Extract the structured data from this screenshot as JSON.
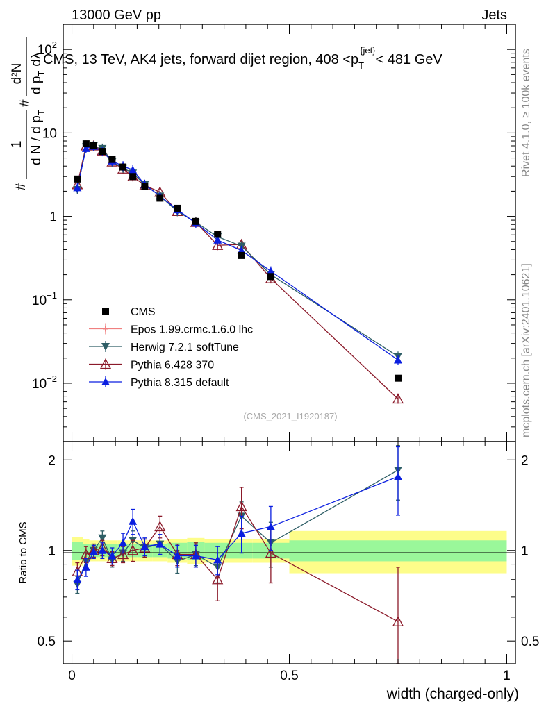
{
  "header": {
    "left": "13000 GeV pp",
    "right": "Jets",
    "rivet": "Rivet 4.1.0, ≥ 100k events",
    "mcplots": "mcplots.cern.ch [arXiv:2401.10621]"
  },
  "chart_data": [
    {
      "type": "line",
      "title": "CMS, 13 TeV, AK4 jets, forward dijet region, 408 <p_T^{jet}> < 481 GeV",
      "title_parts": {
        "main": "CMS, 13 TeV, AK4 jets, forward dijet region, 408 <p",
        "sub": "T",
        "sup": "{jet}",
        "tail": "< 481 GeV"
      },
      "ylabel_parts": {
        "frac": "1",
        "num": "#",
        "den": "d N / d p",
        "den_sub": "T",
        "mid": "#",
        "num2": "d²N",
        "den2": "d p",
        "den2_sub": "T",
        "den2_tail": "dλ"
      },
      "ylabel": "# 1 / d N / d p_T # d²N / d p_T dλ",
      "yscale": "log",
      "ylim": [
        0.002,
        200
      ],
      "xlim": [
        -0.02,
        1.02
      ],
      "yticks": [
        {
          "value": 100,
          "base": "10",
          "exp": "2"
        },
        {
          "value": 10,
          "label": "10"
        },
        {
          "value": 1,
          "label": "1"
        },
        {
          "value": 0.1,
          "base": "10",
          "exp": "−1"
        },
        {
          "value": 0.01,
          "base": "10",
          "exp": "−2"
        }
      ],
      "x": [
        0.0125,
        0.0325,
        0.05,
        0.07,
        0.0925,
        0.1175,
        0.14,
        0.1675,
        0.2025,
        0.2425,
        0.285,
        0.335,
        0.39,
        0.4575,
        0.75
      ],
      "series": [
        {
          "name": "CMS",
          "color": "#000000",
          "marker": "square",
          "values": [
            2.8,
            7.4,
            7.0,
            6.0,
            4.8,
            3.9,
            3.0,
            2.3,
            1.65,
            1.25,
            0.87,
            0.61,
            0.34,
            0.19,
            0.0115
          ]
        },
        {
          "name": "Epos 1.99.crmc.1.6.0 lhc",
          "color": "#f08080",
          "marker": "open-cross",
          "values": [
            null,
            null,
            null,
            null,
            null,
            null,
            null,
            null,
            null,
            null,
            null,
            null,
            null,
            null,
            null
          ]
        },
        {
          "name": "Herwig 7.2.1 softTune",
          "color": "#2e5e66",
          "marker": "triangle-down",
          "values": [
            2.1,
            6.8,
            7.0,
            6.5,
            4.5,
            3.8,
            3.3,
            2.4,
            1.75,
            1.15,
            0.85,
            0.57,
            0.44,
            0.2,
            0.021
          ]
        },
        {
          "name": "Pythia 6.428 370",
          "color": "#8b1a2a",
          "marker": "open-triangle",
          "values": [
            2.4,
            7.0,
            7.0,
            6.1,
            4.5,
            3.7,
            3.0,
            2.35,
            1.95,
            1.15,
            0.85,
            0.45,
            0.46,
            0.18,
            0.0065
          ]
        },
        {
          "name": "Pythia 8.315 default",
          "color": "#0a1ee0",
          "marker": "triangle",
          "values": [
            2.2,
            6.5,
            6.9,
            6.0,
            4.6,
            4.0,
            3.6,
            2.4,
            1.75,
            1.2,
            0.83,
            0.52,
            0.39,
            0.22,
            0.019
          ]
        }
      ],
      "watermark": "(CMS_2021_I1920187)"
    },
    {
      "type": "line",
      "ylabel": "Ratio to CMS",
      "xlabel": "width (charged-only)",
      "ylim": [
        0.42,
        2.3
      ],
      "yscale": "log",
      "yticks": [
        {
          "value": 0.5,
          "label": "0.5"
        },
        {
          "value": 1,
          "label": "1"
        },
        {
          "value": 2,
          "label": "2"
        }
      ],
      "xticks": [
        {
          "value": 0,
          "label": "0"
        },
        {
          "value": 0.5,
          "label": "0.5"
        },
        {
          "value": 1,
          "label": "1"
        }
      ],
      "band_edges": [
        0,
        0.025,
        0.04,
        0.06,
        0.08,
        0.105,
        0.13,
        0.15,
        0.185,
        0.22,
        0.265,
        0.305,
        0.365,
        0.415,
        0.5,
        1.0
      ],
      "band_inner": [
        0.07,
        0.05,
        0.05,
        0.05,
        0.05,
        0.05,
        0.05,
        0.05,
        0.05,
        0.06,
        0.07,
        0.06,
        0.06,
        0.06,
        0.08
      ],
      "band_outer": [
        0.11,
        0.09,
        0.08,
        0.08,
        0.08,
        0.08,
        0.08,
        0.08,
        0.08,
        0.09,
        0.1,
        0.09,
        0.09,
        0.09,
        0.16
      ],
      "series": [
        {
          "name": "Herwig 7.2.1 softTune",
          "color": "#2e5e66",
          "marker": "triangle-down",
          "values": [
            0.77,
            0.92,
            1.0,
            1.1,
            0.93,
            0.98,
            1.08,
            1.02,
            1.05,
            0.92,
            0.97,
            0.88,
            1.3,
            1.06,
            1.85
          ],
          "errors": [
            0.05,
            0.06,
            0.05,
            0.06,
            0.05,
            0.06,
            0.08,
            0.07,
            0.08,
            0.08,
            0.08,
            0.1,
            0.15,
            0.18,
            0.38
          ]
        },
        {
          "name": "Pythia 6.428 370",
          "color": "#8b1a2a",
          "marker": "open-triangle",
          "values": [
            0.85,
            0.97,
            1.0,
            1.02,
            0.94,
            0.97,
            1.0,
            1.02,
            1.2,
            0.97,
            0.97,
            0.8,
            1.4,
            0.98,
            0.58
          ],
          "errors": [
            0.06,
            0.06,
            0.05,
            0.06,
            0.05,
            0.06,
            0.08,
            0.07,
            0.1,
            0.08,
            0.09,
            0.12,
            0.22,
            0.2,
            0.3
          ]
        },
        {
          "name": "Pythia 8.315 default",
          "color": "#0a1ee0",
          "marker": "triangle",
          "values": [
            0.8,
            0.88,
            0.99,
            1.0,
            0.96,
            1.06,
            1.25,
            1.03,
            1.05,
            0.96,
            0.96,
            0.93,
            1.14,
            1.2,
            1.76
          ],
          "errors": [
            0.06,
            0.06,
            0.05,
            0.06,
            0.06,
            0.08,
            0.12,
            0.07,
            0.08,
            0.08,
            0.08,
            0.1,
            0.16,
            0.2,
            0.45
          ]
        }
      ]
    }
  ]
}
